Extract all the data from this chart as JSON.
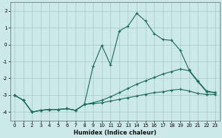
{
  "xlabel": "Humidex (Indice chaleur)",
  "xlim": [
    -0.5,
    23.5
  ],
  "ylim": [
    -4.5,
    2.5
  ],
  "yticks": [
    -4,
    -3,
    -2,
    -1,
    0,
    1,
    2
  ],
  "xticks": [
    0,
    1,
    2,
    3,
    4,
    5,
    6,
    7,
    8,
    9,
    10,
    11,
    12,
    13,
    14,
    15,
    16,
    17,
    18,
    19,
    20,
    21,
    22,
    23
  ],
  "bg_color": "#cce8e8",
  "grid_color": "#aacccc",
  "line_color": "#1a6b5a",
  "s1_x": [
    0,
    1,
    2,
    3,
    4,
    5,
    6,
    7,
    8,
    9,
    10,
    11,
    12,
    13,
    14,
    15,
    16,
    17,
    18,
    19,
    20,
    21,
    22,
    23
  ],
  "s1_y": [
    -3.0,
    -3.3,
    -4.0,
    -3.9,
    -3.85,
    -3.85,
    -3.8,
    -3.9,
    -3.55,
    -1.3,
    -0.05,
    -1.2,
    0.8,
    1.1,
    1.85,
    1.4,
    0.65,
    0.3,
    0.25,
    -0.35,
    -1.5,
    -2.15,
    -2.75,
    -2.85
  ],
  "s2_x": [
    0,
    1,
    2,
    3,
    4,
    5,
    6,
    7,
    8,
    9,
    10,
    11,
    12,
    13,
    14,
    15,
    16,
    17,
    18,
    19,
    20,
    21,
    22,
    23
  ],
  "s2_y": [
    -3.0,
    -3.3,
    -4.0,
    -3.9,
    -3.85,
    -3.85,
    -3.8,
    -3.9,
    -3.55,
    -3.45,
    -3.3,
    -3.1,
    -2.85,
    -2.6,
    -2.35,
    -2.15,
    -1.95,
    -1.75,
    -1.6,
    -1.45,
    -1.55,
    -2.2,
    -2.8,
    -2.85
  ],
  "s3_x": [
    0,
    1,
    2,
    3,
    4,
    5,
    6,
    7,
    8,
    9,
    10,
    11,
    12,
    13,
    14,
    15,
    16,
    17,
    18,
    19,
    20,
    21,
    22,
    23
  ],
  "s3_y": [
    -3.0,
    -3.3,
    -4.0,
    -3.9,
    -3.85,
    -3.85,
    -3.8,
    -3.9,
    -3.55,
    -3.5,
    -3.45,
    -3.35,
    -3.25,
    -3.15,
    -3.05,
    -2.95,
    -2.85,
    -2.8,
    -2.7,
    -2.65,
    -2.75,
    -2.9,
    -2.95,
    -2.95
  ]
}
